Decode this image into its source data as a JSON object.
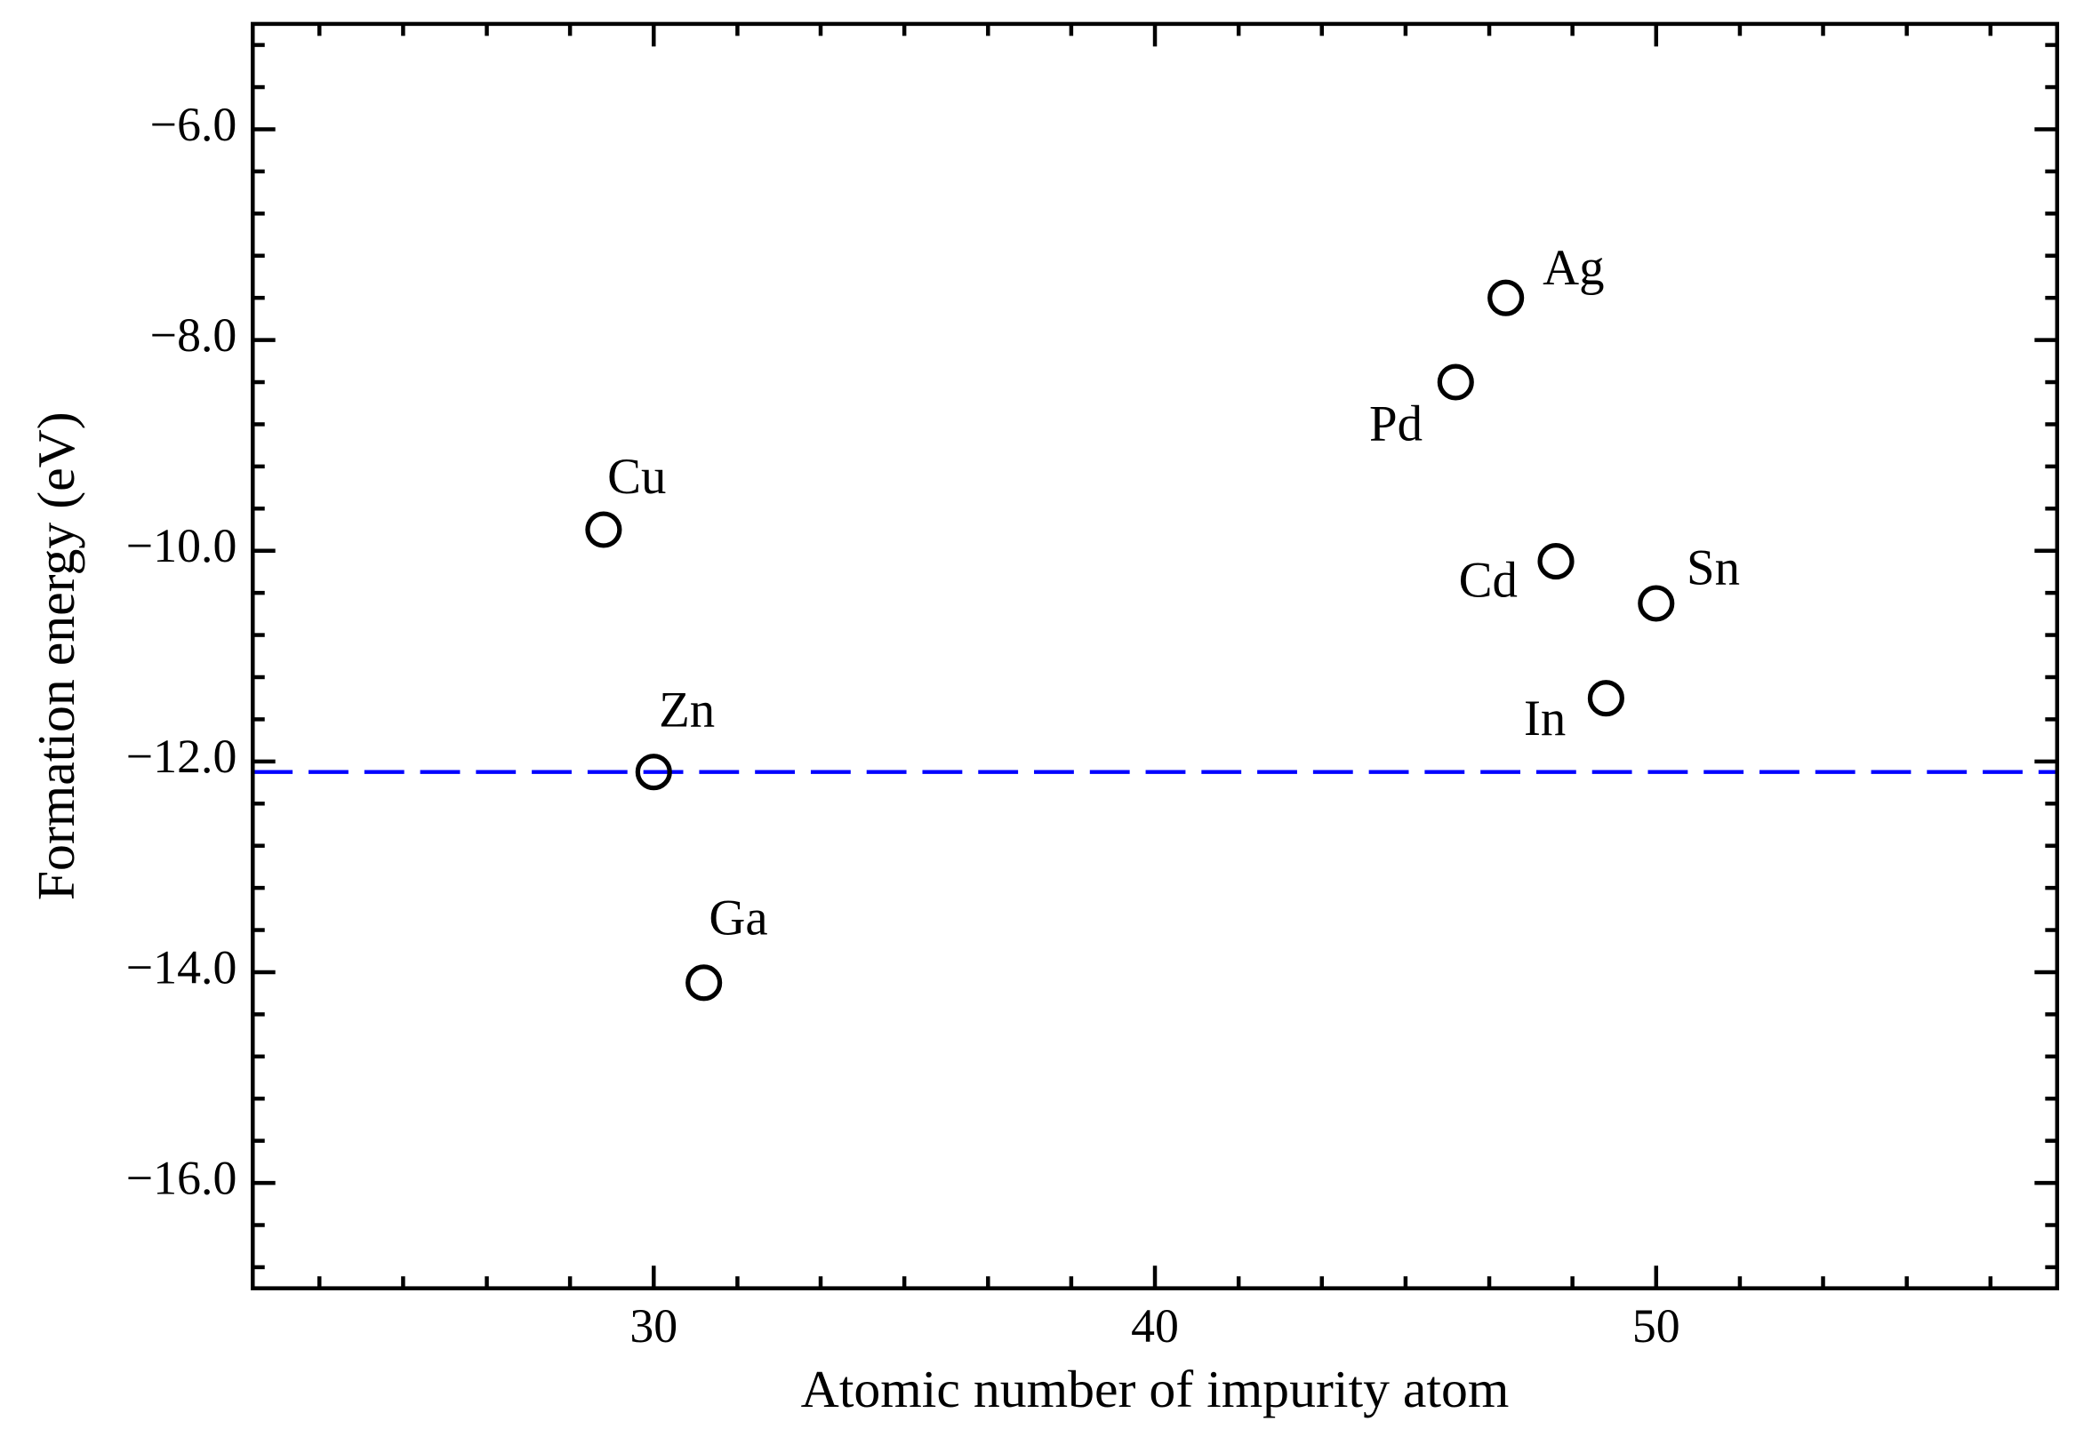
{
  "chart_data": {
    "type": "scatter",
    "xlabel": "Atomic number of impurity atom",
    "ylabel": "Formation energy (eV)",
    "x": [
      29,
      30,
      31,
      46,
      47,
      48,
      49,
      50
    ],
    "values": [
      -9.8,
      -12.1,
      -14.1,
      -8.4,
      -7.6,
      -10.1,
      -11.4,
      -10.5
    ],
    "labels": [
      "Cu",
      "Zn",
      "Ga",
      "Pd",
      "Ag",
      "Cd",
      "In",
      "Sn"
    ],
    "color": "#000000",
    "marker": "open-circle",
    "xlim": [
      22,
      58
    ],
    "ylim": [
      -17,
      -5
    ],
    "xticks": [
      30,
      40,
      50
    ],
    "yticks": [
      {
        "value": -16,
        "label": "−16.0"
      },
      {
        "value": -14,
        "label": "−14.0"
      },
      {
        "value": -12,
        "label": "−12.0"
      },
      {
        "value": -10,
        "label": "−10.0"
      },
      {
        "value": -8,
        "label": "−8.0"
      },
      {
        "value": -6,
        "label": "−6.0"
      }
    ],
    "xminorticks": [
      23.33,
      25,
      26.67,
      28.33,
      31.67,
      33.33,
      35,
      36.67,
      38.33,
      41.67,
      43.33,
      45,
      46.67,
      48.33,
      51.67,
      53.33,
      55,
      56.67
    ],
    "yminorticks": [
      -16.8,
      -16.4,
      -15.6,
      -15.2,
      -14.8,
      -14.4,
      -13.6,
      -13.2,
      -12.8,
      -12.4,
      -11.6,
      -11.2,
      -10.8,
      -10.4,
      -9.6,
      -9.2,
      -8.8,
      -8.4,
      -7.6,
      -7.2,
      -6.8,
      -6.4,
      -5.6,
      -5.2
    ],
    "hline": {
      "value": -12.1,
      "color": "#0000ff",
      "style": "dashed"
    },
    "grid": false
  }
}
